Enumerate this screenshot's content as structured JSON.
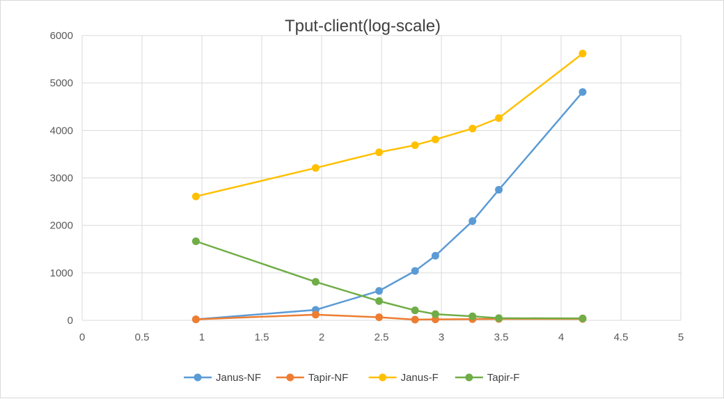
{
  "chart_data": {
    "type": "scatter",
    "title": "Tput-client(log-scale)",
    "xlabel": "",
    "ylabel": "",
    "xlim": [
      0,
      5
    ],
    "ylim": [
      0,
      6000
    ],
    "xticks": [
      "0",
      "0.5",
      "1",
      "1.5",
      "2",
      "2.5",
      "3",
      "3.5",
      "4",
      "4.5",
      "5"
    ],
    "yticks": [
      "0",
      "1000",
      "2000",
      "3000",
      "4000",
      "5000",
      "6000"
    ],
    "grid": true,
    "legend": "bottom",
    "series": [
      {
        "name": "Janus-NF",
        "color": "#5b9bd5",
        "x": [
          0.95,
          1.95,
          2.48,
          2.78,
          2.95,
          3.26,
          3.48,
          4.18
        ],
        "y": [
          20,
          220,
          620,
          1040,
          1360,
          2090,
          2750,
          4810
        ]
      },
      {
        "name": "Tapir-NF",
        "color": "#ed7d31",
        "x": [
          0.95,
          1.95,
          2.48,
          2.78,
          2.95,
          3.26,
          3.48,
          4.18
        ],
        "y": [
          20,
          120,
          65,
          15,
          20,
          25,
          30,
          30
        ]
      },
      {
        "name": "Janus-F",
        "color": "#ffc000",
        "x": [
          0.95,
          1.95,
          2.48,
          2.78,
          2.95,
          3.26,
          3.48,
          4.18
        ],
        "y": [
          2610,
          3210,
          3540,
          3690,
          3810,
          4040,
          4260,
          5620
        ]
      },
      {
        "name": "Tapir-F",
        "color": "#70ad47",
        "x": [
          0.95,
          1.95,
          2.48,
          2.78,
          2.95,
          3.26,
          3.48,
          4.18
        ],
        "y": [
          1665,
          810,
          405,
          210,
          130,
          85,
          45,
          40
        ]
      }
    ]
  }
}
